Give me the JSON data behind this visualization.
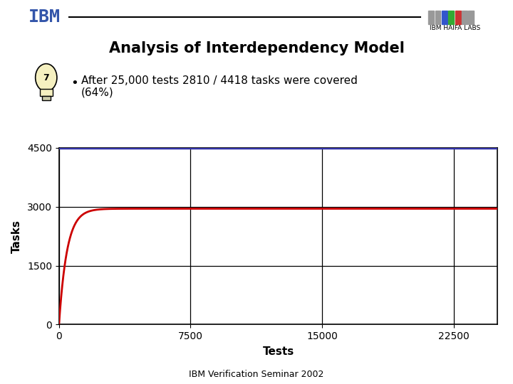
{
  "title": "Analysis of Interdependency Model",
  "bullet_line1": "After 25,000 tests 2810 / 4418 tasks were covered",
  "bullet_line2": "(64%)",
  "xlabel": "Tests",
  "ylabel": "Tasks",
  "xlim": [
    0,
    25000
  ],
  "ylim": [
    0,
    4500
  ],
  "xticks": [
    0,
    7500,
    15000,
    22500
  ],
  "yticks": [
    0,
    1500,
    3000,
    4500
  ],
  "curve_color": "#cc0000",
  "grid_color": "#000000",
  "top_border_color": "#3333aa",
  "total_tasks": 4418,
  "covered_tasks": 2810,
  "total_tests": 25000,
  "k_multiplier": 20,
  "footer_text": "IBM Verification Seminar 2002",
  "bg_color": "#ffffff",
  "ibm_color": "#3355aa"
}
